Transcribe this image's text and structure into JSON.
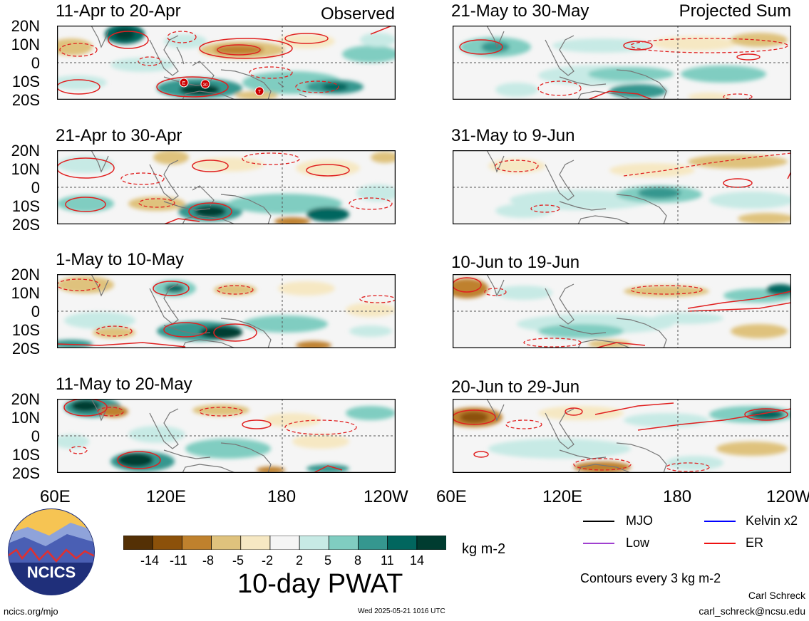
{
  "observed_label": "Observed",
  "projected_label": "Projected Sum",
  "lat_labels": [
    "20N",
    "10N",
    "0",
    "10S",
    "20S"
  ],
  "lon_labels": [
    "60E",
    "120E",
    "180",
    "120W"
  ],
  "panels": [
    {
      "title": "11-Apr to 20-Apr"
    },
    {
      "title": "21-Apr to 30-Apr"
    },
    {
      "title": "1-May to 10-May"
    },
    {
      "title": "11-May to 20-May"
    },
    {
      "title": "21-May to 30-May"
    },
    {
      "title": "31-May to 9-Jun"
    },
    {
      "title": "10-Jun to 19-Jun"
    },
    {
      "title": "20-Jun to 29-Jun"
    }
  ],
  "storm_markers": [
    "E",
    "30",
    "T"
  ],
  "colorbar": {
    "title": "10-day PWAT",
    "units": "kg m-2",
    "ticks": [
      "-14",
      "-11",
      "-8",
      "-5",
      "-2",
      "2",
      "5",
      "8",
      "11",
      "14"
    ],
    "colors": [
      "#543005",
      "#8c510a",
      "#bf812d",
      "#dfc27d",
      "#f6e8c3",
      "#f5f5f5",
      "#c7eae5",
      "#80cdc1",
      "#35978f",
      "#01665e",
      "#003c30"
    ]
  },
  "legend": {
    "items": [
      {
        "label": "MJO",
        "color": "#000000"
      },
      {
        "label": "Kelvin x2",
        "color": "#0000ff"
      },
      {
        "label": "Low",
        "color": "#a040d0"
      },
      {
        "label": "ER",
        "color": "#ee1111"
      }
    ],
    "contour_note": "Contours every 3 kg m-2"
  },
  "footer": {
    "site": "ncics.org/mjo",
    "timestamp": "Wed 2025-05-21 1016 UTC",
    "author": "Carl Schreck",
    "email": "carl_schreck@ncsu.edu"
  },
  "logo_text": "NCICS"
}
